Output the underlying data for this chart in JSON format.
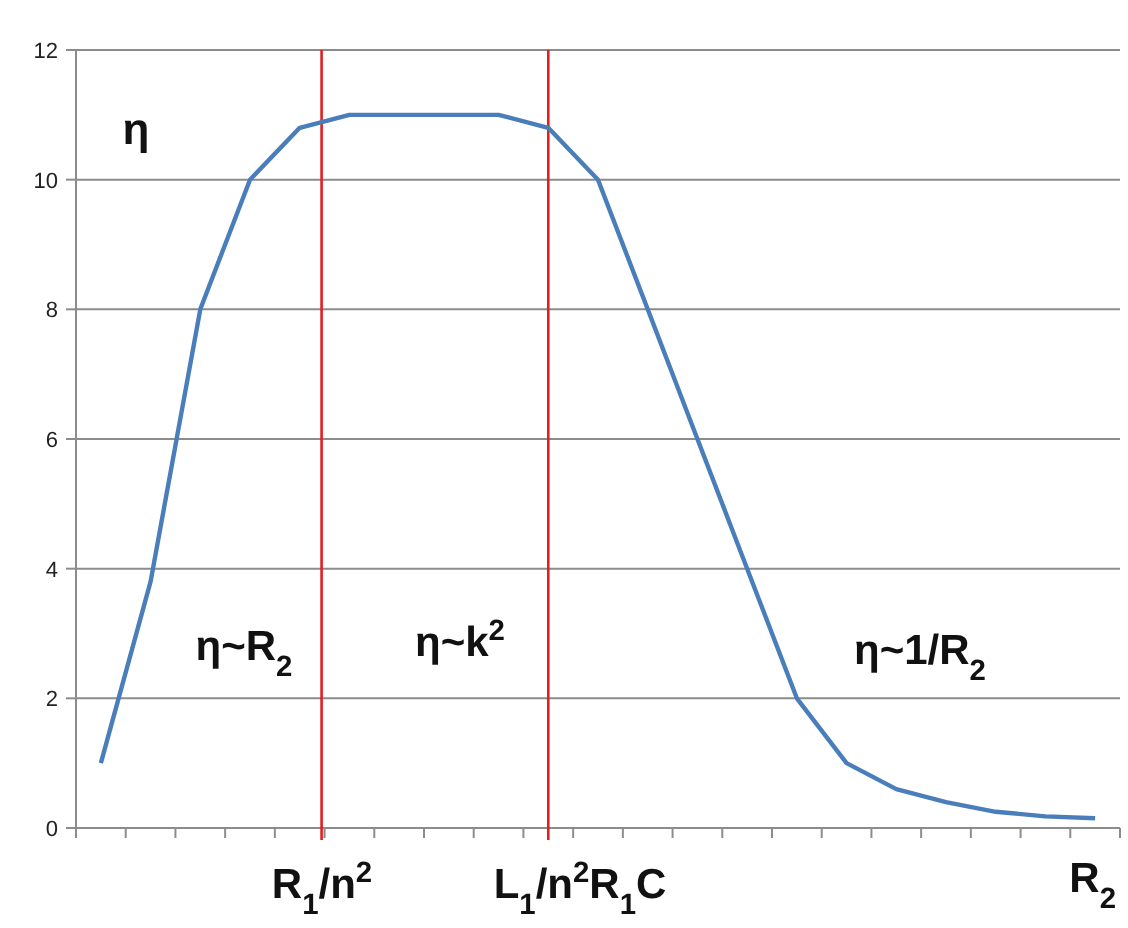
{
  "chart_data": {
    "type": "line",
    "categories": [
      null,
      null,
      null,
      null,
      null,
      null,
      null,
      null,
      null,
      null,
      null,
      null,
      null,
      null,
      null,
      null,
      null,
      null,
      null,
      null,
      null
    ],
    "series": [
      {
        "color": "#4a7ebb",
        "values": [
          1,
          3.8,
          8,
          10,
          10.8,
          11,
          11,
          11,
          11,
          10.8,
          10,
          8,
          6,
          4,
          2,
          1,
          0.6,
          0.4,
          0.25,
          0.18,
          0.15
        ]
      }
    ],
    "ylim": [
      0,
      12
    ],
    "yticks": [
      0,
      2,
      4,
      6,
      8,
      10,
      12
    ],
    "grid": "y",
    "marker": "none",
    "line_style": "solid",
    "tick_labels": "y",
    "annotations": [
      "η",
      "η~R$_{2}$",
      "η~k$^{2}$",
      "η~1/R$_{2}$",
      "R$_{1}$/n$^{2}$",
      "L$_{1}$/n$^{2}$R$_{1}$C",
      "R$_{2}$"
    ]
  }
}
